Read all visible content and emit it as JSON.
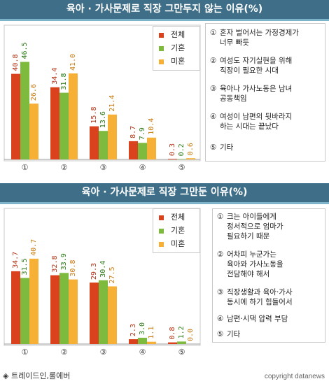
{
  "colors": {
    "전체": "#d9421c",
    "기혼": "#7dba3e",
    "미혼": "#f5b035"
  },
  "panels": [
    {
      "title": "육아 · 가사문제로 직장 그만두지 않는 이유(%)",
      "legend": [
        "전체",
        "기혼",
        "미혼"
      ],
      "reasons": [
        {
          "num": "①",
          "text": "혼자 벌어서는 가정경제가\n너무 빠듯"
        },
        {
          "num": "②",
          "text": "여성도 자기실현을 위해\n직장이 필요한 시대"
        },
        {
          "num": "③",
          "text": "육아나 가사노동은 남녀\n공동책임"
        },
        {
          "num": "④",
          "text": "여성이 남편의 뒷바라지\n하는 시대는 끝났다"
        },
        {
          "num": "⑤",
          "text": "기타"
        }
      ]
    },
    {
      "title": "육아 · 가사문제로 직장 그만둔 이유(%)",
      "legend": [
        "전체",
        "기혼",
        "미혼"
      ],
      "reasons": [
        {
          "num": "①",
          "text": "크는 아이들에게\n정서적으로 엄마가\n필요하기 때문"
        },
        {
          "num": "②",
          "text": "어차피 누군가는\n육아와 가사노동을\n전담해야 해서"
        },
        {
          "num": "③",
          "text": "직장생활과 육아·가사\n동시에 하기 힘들어서"
        },
        {
          "num": "④",
          "text": "남편·시댁 압력 부담"
        },
        {
          "num": "⑤",
          "text": "기타"
        }
      ]
    }
  ],
  "chart_data": [
    {
      "type": "bar",
      "title": "육아 · 가사문제로 직장 그만두지 않는 이유(%)",
      "categories": [
        "①",
        "②",
        "③",
        "④",
        "⑤"
      ],
      "series": [
        {
          "name": "전체",
          "values": [
            40.8,
            34.4,
            15.8,
            8.7,
            0.3
          ]
        },
        {
          "name": "기혼",
          "values": [
            46.5,
            31.8,
            13.6,
            7.9,
            0.2
          ]
        },
        {
          "name": "미혼",
          "values": [
            26.6,
            41.0,
            21.4,
            10.4,
            0.6
          ]
        }
      ],
      "ylim": [
        0,
        50
      ],
      "value_labels": [
        [
          "40.8",
          "34.4",
          "15.8",
          "8.7",
          "0.3"
        ],
        [
          "46.5",
          "31.8",
          "13.6",
          "7.9",
          "0.2"
        ],
        [
          "26.6",
          "41.0",
          "21.4",
          "10.4",
          "0.6"
        ]
      ],
      "legend_position": "top-right"
    },
    {
      "type": "bar",
      "title": "육아 · 가사문제로 직장 그만둔 이유(%)",
      "categories": [
        "①",
        "②",
        "③",
        "④",
        "⑤"
      ],
      "series": [
        {
          "name": "전체",
          "values": [
            34.7,
            32.8,
            29.3,
            2.3,
            0.8
          ]
        },
        {
          "name": "기혼",
          "values": [
            31.5,
            33.9,
            30.4,
            3.0,
            1.2
          ]
        },
        {
          "name": "미혼",
          "values": [
            40.7,
            30.8,
            27.5,
            1.1,
            0.0
          ]
        }
      ],
      "ylim": [
        0,
        50
      ],
      "value_labels": [
        [
          "34.7",
          "32.8",
          "29.3",
          "2.3",
          "0.8"
        ],
        [
          "31.5",
          "33.9",
          "30.4",
          "3.0",
          "1.2"
        ],
        [
          "40.7",
          "30.8",
          "27.5",
          "1.1",
          "0.0"
        ]
      ],
      "legend_position": "top-right"
    }
  ],
  "footer": {
    "source": "◈ 트레이드인,롤에버",
    "copyright": "copyright datanews"
  }
}
